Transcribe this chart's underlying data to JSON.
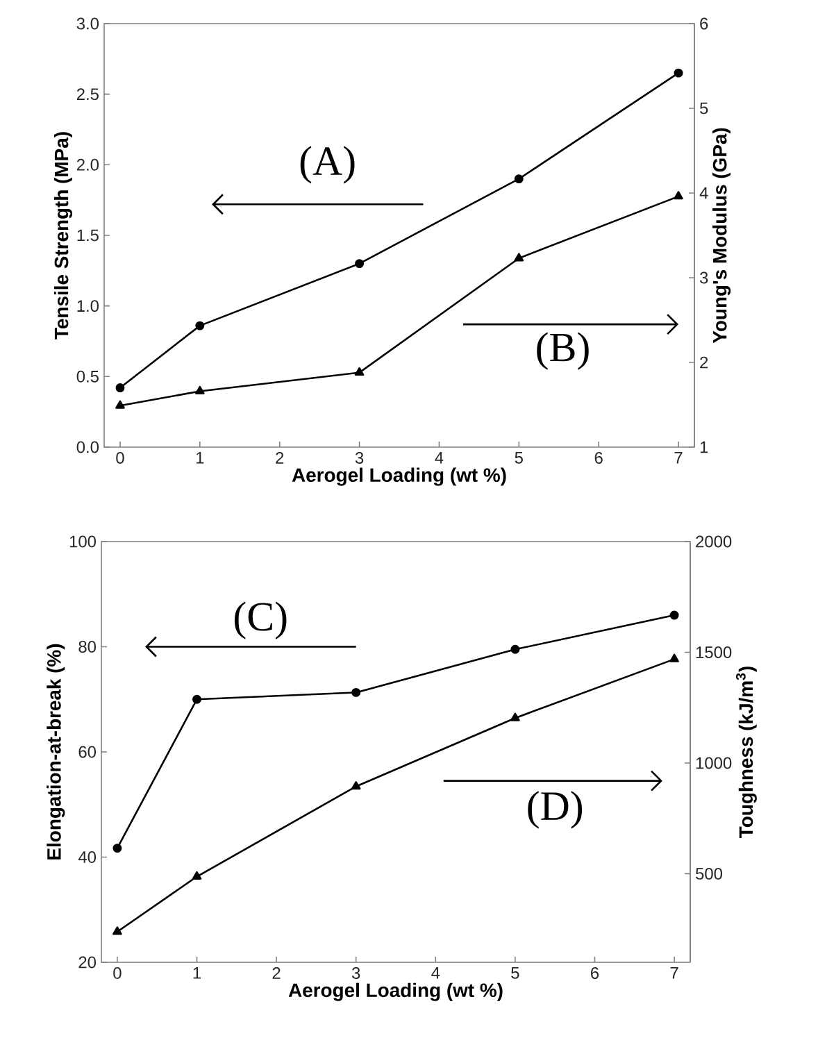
{
  "chart_data": [
    {
      "type": "line",
      "xlabel": "Aerogel Loading (wt %)",
      "ylabel": "Tensile Strength (MPa)",
      "y2label": "Young's Modulus (GPa)",
      "x": [
        0,
        1,
        3,
        5,
        7
      ],
      "xlim": [
        -0.2,
        7.2
      ],
      "xticks": [
        0,
        1,
        2,
        3,
        4,
        5,
        6,
        7
      ],
      "ylim": [
        0,
        3
      ],
      "yticks": [
        {
          "value": 0,
          "label": "0.0"
        },
        0.5,
        {
          "value": 1,
          "label": "1.0"
        },
        1.5,
        {
          "value": 2,
          "label": "2.0"
        },
        2.5,
        {
          "value": 3,
          "label": "3.0"
        }
      ],
      "y2lim": [
        1,
        6
      ],
      "y2ticks": [
        1,
        2,
        3,
        4,
        5,
        6
      ],
      "series": [
        {
          "color": "#000000",
          "marker": "circle",
          "values": [
            0.42,
            0.86,
            1.3,
            1.9,
            2.65
          ]
        },
        {
          "color": "#000000",
          "marker": "triangle",
          "axis": "y2",
          "values": [
            1.49,
            1.66,
            1.88,
            3.23,
            3.96
          ]
        }
      ],
      "annotations": [
        "(A)",
        "(B)"
      ]
    },
    {
      "type": "line",
      "xlabel": "Aerogel Loading (wt %)",
      "ylabel": "Elongation-at-break (%)",
      "y2label": "Toughness (kJ/m$^{3}$)",
      "x": [
        0,
        1,
        3,
        5,
        7
      ],
      "xlim": [
        -0.2,
        7.2
      ],
      "xticks": [
        0,
        1,
        2,
        3,
        4,
        5,
        6,
        7
      ],
      "ylim": [
        20,
        100
      ],
      "yticks": [
        20,
        40,
        60,
        80,
        100
      ],
      "y2lim": [
        100,
        2000
      ],
      "y2ticks": [
        500,
        1000,
        1500,
        2000
      ],
      "series": [
        {
          "color": "#000000",
          "marker": "circle",
          "values": [
            41.7,
            70.0,
            71.3,
            79.5,
            86.0
          ]
        },
        {
          "color": "#000000",
          "marker": "triangle",
          "axis": "y2",
          "values": [
            238,
            487,
            894,
            1203,
            1469
          ]
        }
      ],
      "annotations": [
        "(C)",
        "(D)"
      ]
    }
  ]
}
